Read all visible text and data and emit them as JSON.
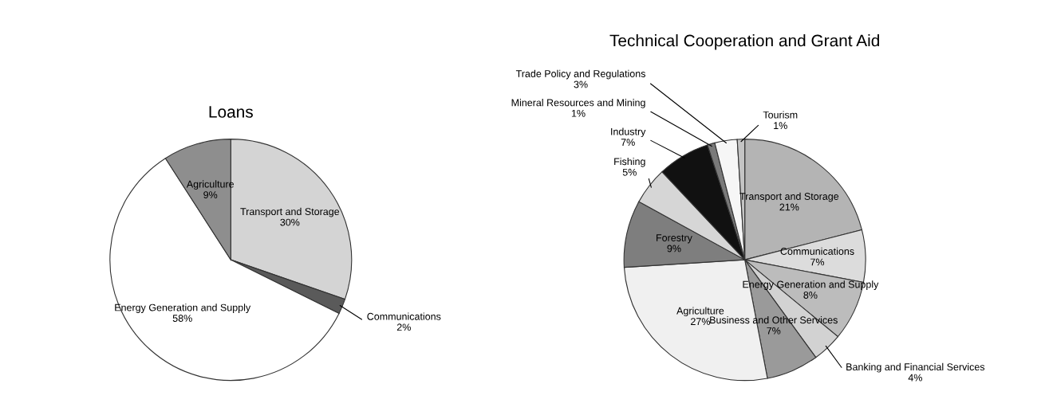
{
  "chart_data": [
    {
      "type": "pie",
      "title": "Loans",
      "categories": [
        "Transport and Storage",
        "Communications",
        "Energy Generation and Supply",
        "Agriculture"
      ],
      "values": [
        30,
        2,
        58,
        9
      ],
      "value_labels": [
        "30%",
        "2%",
        "58%",
        "9%"
      ],
      "colors": [
        "#d4d4d4",
        "#5a5a5a",
        "#ffffff",
        "#8e8e8e"
      ]
    },
    {
      "type": "pie",
      "title": "Technical Cooperation and Grant Aid",
      "categories": [
        "Transport and Storage",
        "Communications",
        "Energy Generation and Supply",
        "Banking and Financial Services",
        "Business and Other Services",
        "Agriculture",
        "Forestry",
        "Fishing",
        "Industry",
        "Mineral Resources and Mining",
        "Trade Policy and Regulations",
        "Tourism"
      ],
      "values": [
        21,
        7,
        8,
        4,
        7,
        27,
        9,
        5,
        7,
        1,
        3,
        1
      ],
      "value_labels": [
        "21%",
        "7%",
        "8%",
        "4%",
        "7%",
        "27%",
        "9%",
        "5%",
        "7%",
        "1%",
        "3%",
        "1%"
      ],
      "colors": [
        "#b4b4b4",
        "#dcdcdc",
        "#bcbcbc",
        "#d2d2d2",
        "#9a9a9a",
        "#f0f0f0",
        "#7e7e7e",
        "#d6d6d6",
        "#111111",
        "#7a7a7a",
        "#f6f6f6",
        "#c4c4c4"
      ]
    }
  ]
}
